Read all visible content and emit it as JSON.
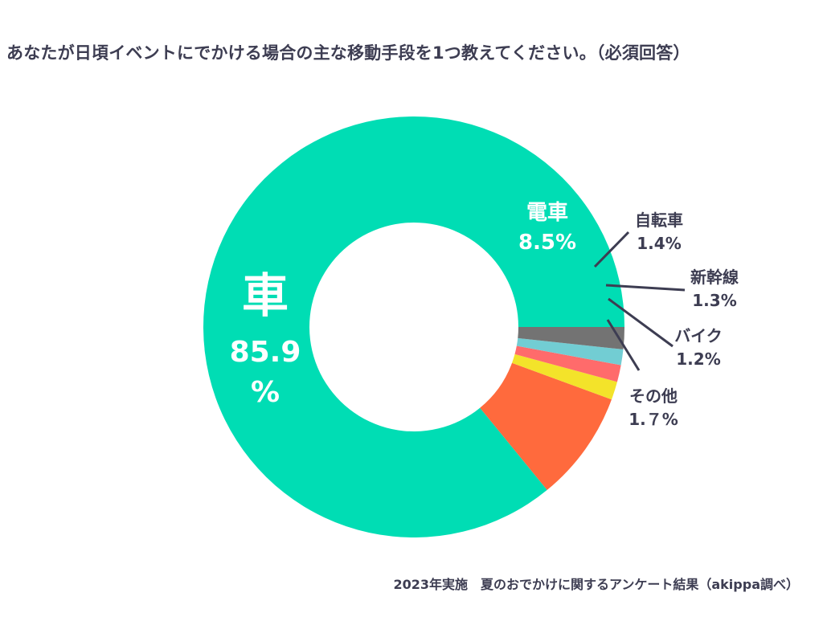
{
  "title": "あなたが日頃イベントにでかける場合の主な移動手段を1つ教えてください。（必須回答）",
  "footer": "2023年実施　夏のおでかけに関するアンケート結果（akippa調べ）",
  "chart_data": {
    "type": "pie",
    "style": "donut",
    "title": "あなたが日頃イベントにでかける場合の主な移動手段を1つ教えてください。（必須回答）",
    "unit": "%",
    "series": [
      {
        "name": "車",
        "value": 85.9,
        "label_value": "85.9\n%",
        "color": "#00ddb4",
        "label_placement": "inside"
      },
      {
        "name": "電車",
        "value": 8.5,
        "label_value": "8.5%",
        "color": "#ff6a3d",
        "label_placement": "inside"
      },
      {
        "name": "自転車",
        "value": 1.4,
        "label_value": "1.4%",
        "color": "#f3e32a",
        "label_placement": "outside"
      },
      {
        "name": "新幹線",
        "value": 1.3,
        "label_value": "1.3%",
        "color": "#ff6b6b",
        "label_placement": "outside"
      },
      {
        "name": "バイク",
        "value": 1.2,
        "label_value": "1.2%",
        "color": "#72cdd3",
        "label_placement": "outside"
      },
      {
        "name": "その他",
        "value": 1.7,
        "label_value": "1.７%",
        "color": "#737373",
        "label_placement": "outside"
      }
    ],
    "start_direction": "east",
    "direction": "counterclockwise",
    "legend": "none"
  }
}
